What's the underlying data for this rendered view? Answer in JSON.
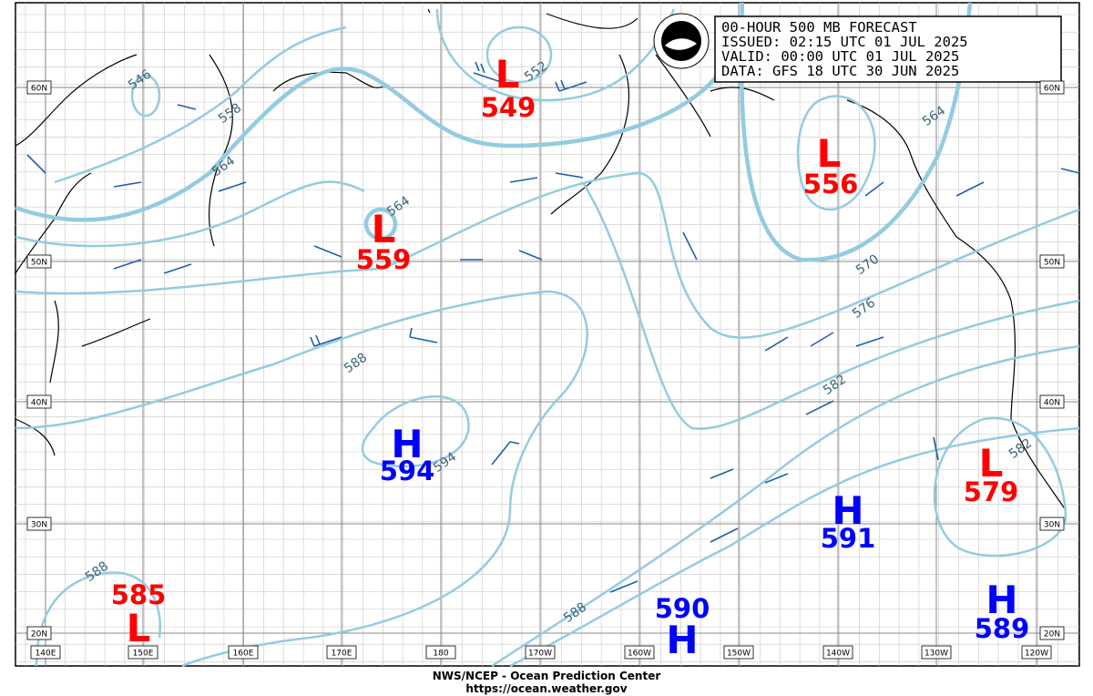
{
  "header": {
    "lines": [
      "00-HOUR 500 MB FORECAST",
      "ISSUED: 02:15 UTC 01 JUL 2025",
      "VALID:  00:00 UTC 01 JUL 2025",
      "DATA:  GFS 18 UTC 30 JUN 2025"
    ]
  },
  "centers": [
    {
      "type": "L",
      "value": "549"
    },
    {
      "type": "L",
      "value": "556"
    },
    {
      "type": "L",
      "value": "559"
    },
    {
      "type": "L",
      "value": "585"
    },
    {
      "type": "L",
      "value": "579"
    },
    {
      "type": "H",
      "value": "594"
    },
    {
      "type": "H",
      "value": "591"
    },
    {
      "type": "H",
      "value": "590"
    },
    {
      "type": "H",
      "value": "589"
    }
  ],
  "contour_labels": [
    "546",
    "552",
    "558",
    "564",
    "564",
    "564",
    "570",
    "576",
    "582",
    "582",
    "588",
    "588",
    "588",
    "594"
  ],
  "lat_labels": [
    "60N",
    "50N",
    "40N",
    "30N",
    "20N"
  ],
  "lon_labels": [
    "140E",
    "150E",
    "160E",
    "170E",
    "180",
    "170W",
    "160W",
    "150W",
    "140W",
    "130W",
    "120W"
  ],
  "footer": {
    "lines": [
      "NWS/NCEP - Ocean Prediction Center",
      "https://ocean.weather.gov"
    ]
  }
}
